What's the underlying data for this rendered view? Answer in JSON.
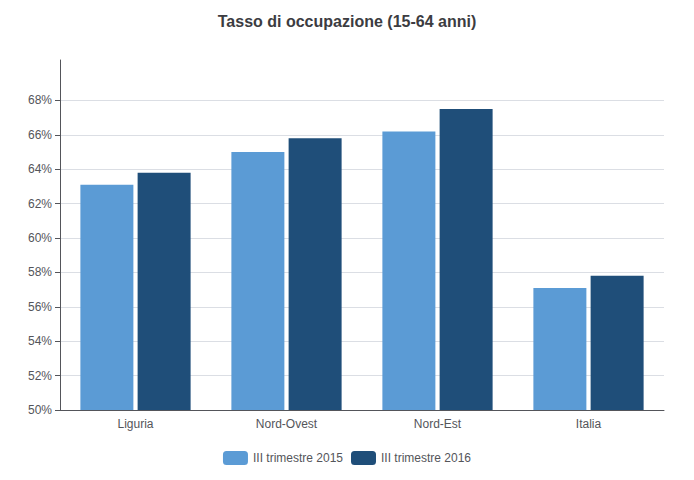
{
  "chart_data": {
    "type": "bar",
    "title": "Tasso di occupazione (15-64 anni)",
    "categories": [
      "Liguria",
      "Nord-Ovest",
      "Nord-Est",
      "Italia"
    ],
    "series": [
      {
        "name": "III trimestre 2015",
        "color": "#5B9BD5",
        "values": [
          63.1,
          65.0,
          66.2,
          57.1
        ]
      },
      {
        "name": "III trimestre 2016",
        "color": "#1F4E79",
        "values": [
          63.8,
          65.8,
          67.5,
          57.8
        ]
      }
    ],
    "ylim": [
      50,
      70.35
    ],
    "yticks": [
      {
        "value": 50,
        "label": "50%"
      },
      {
        "value": 52,
        "label": "52%"
      },
      {
        "value": 54,
        "label": "54%"
      },
      {
        "value": 56,
        "label": "56%"
      },
      {
        "value": 58,
        "label": "58%"
      },
      {
        "value": 60,
        "label": "60%"
      },
      {
        "value": 62,
        "label": "62%"
      },
      {
        "value": 64,
        "label": "64%"
      },
      {
        "value": 66,
        "label": "66%"
      },
      {
        "value": 68,
        "label": "68%"
      }
    ],
    "grid": true,
    "legend": "bottom"
  }
}
